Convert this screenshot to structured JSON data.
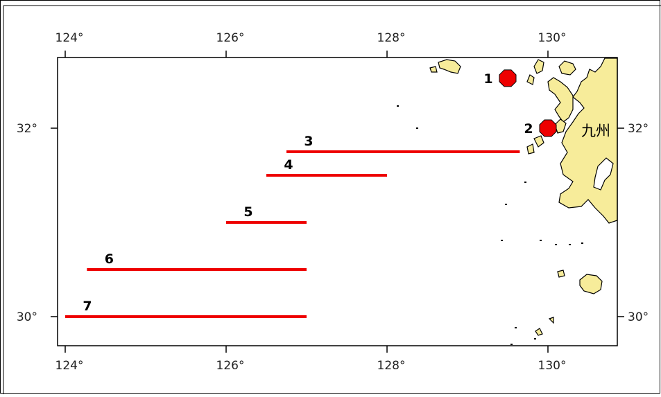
{
  "map": {
    "lon_range": [
      124,
      130.85
    ],
    "lat_range": [
      29.72,
      32.78
    ],
    "x_ticks": [
      {
        "lon": 124,
        "label": "124°"
      },
      {
        "lon": 126,
        "label": "126°"
      },
      {
        "lon": 128,
        "label": "128°"
      },
      {
        "lon": 130,
        "label": "130°"
      }
    ],
    "y_ticks": [
      {
        "lat": 32,
        "label": "32°"
      },
      {
        "lat": 30,
        "label": "30°"
      }
    ],
    "region_label": "九州",
    "colors": {
      "land": "#f7ec9a",
      "marker": "#ee0000",
      "frame": "#000000"
    },
    "points": [
      {
        "label": "1",
        "lon": 129.5,
        "lat": 32.53
      },
      {
        "label": "2",
        "lon": 130.0,
        "lat": 32.0
      }
    ],
    "lines": [
      {
        "label": "3",
        "lon_start": 126.75,
        "lon_end": 129.65,
        "lat": 31.75
      },
      {
        "label": "4",
        "lon_start": 126.5,
        "lon_end": 128.0,
        "lat": 31.5
      },
      {
        "label": "5",
        "lon_start": 126.0,
        "lon_end": 127.0,
        "lat": 31.0
      },
      {
        "label": "6",
        "lon_start": 124.27,
        "lon_end": 127.0,
        "lat": 30.5
      },
      {
        "label": "7",
        "lon_start": 124.0,
        "lon_end": 127.0,
        "lat": 30.0
      }
    ]
  }
}
